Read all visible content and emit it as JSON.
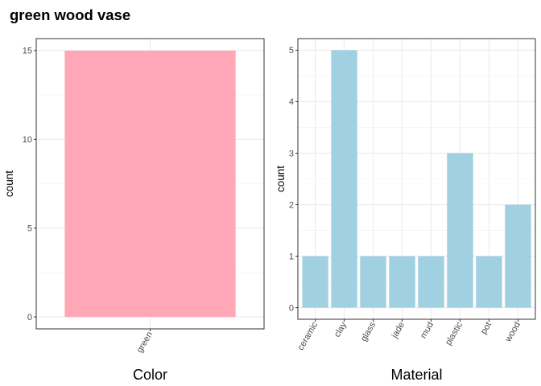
{
  "figure": {
    "title": "green wood vase"
  },
  "chart_data": [
    {
      "type": "bar",
      "xlabel": "Color",
      "ylabel": "count",
      "categories": [
        "green"
      ],
      "values": [
        15
      ],
      "ylim": [
        0,
        15.75
      ],
      "yticks": [
        0,
        5,
        10,
        15
      ],
      "bar_color": "#ffa7b6",
      "grid": true
    },
    {
      "type": "bar",
      "xlabel": "Material",
      "ylabel": "count",
      "categories": [
        "ceramic",
        "clay",
        "glass",
        "jade",
        "mud",
        "plastic",
        "pot",
        "wood"
      ],
      "values": [
        1,
        5,
        1,
        1,
        1,
        3,
        1,
        2
      ],
      "ylim": [
        0,
        5.25
      ],
      "yticks": [
        0,
        1,
        2,
        3,
        4,
        5
      ],
      "bar_color": "#a0d0e2",
      "grid": true
    }
  ]
}
